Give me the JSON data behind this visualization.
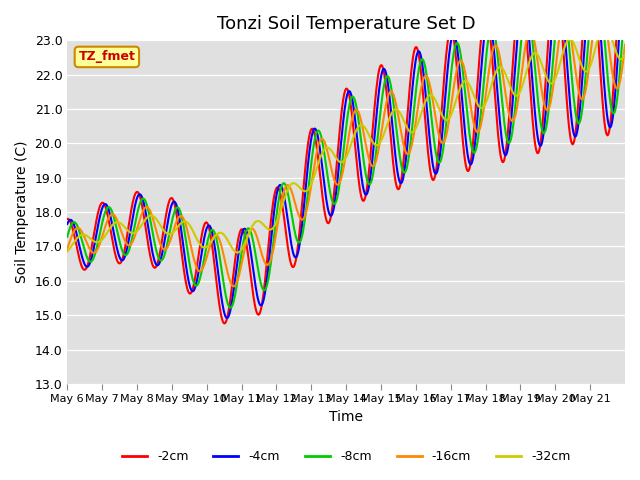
{
  "title": "Tonzi Soil Temperature Set D",
  "xlabel": "Time",
  "ylabel": "Soil Temperature (C)",
  "ylim": [
    13.0,
    23.0
  ],
  "yticks": [
    13.0,
    14.0,
    15.0,
    16.0,
    17.0,
    18.0,
    19.0,
    20.0,
    21.0,
    22.0,
    23.0
  ],
  "xtick_labels": [
    "May 6",
    "May 7",
    "May 8",
    "May 9",
    "May 10",
    "May 11",
    "May 12",
    "May 13",
    "May 14",
    "May 15",
    "May 16",
    "May 17",
    "May 18",
    "May 19",
    "May 20",
    "May 21"
  ],
  "xtick_positions": [
    0,
    1,
    2,
    3,
    4,
    5,
    6,
    7,
    8,
    9,
    10,
    11,
    12,
    13,
    14,
    15
  ],
  "legend_labels": [
    "-2cm",
    "-4cm",
    "-8cm",
    "-16cm",
    "-32cm"
  ],
  "legend_colors": [
    "#ff0000",
    "#0000ff",
    "#00cc00",
    "#ff8800",
    "#cccc00"
  ],
  "annotation_text": "TZ_fmet",
  "annotation_bg": "#ffff99",
  "annotation_border": "#cc8800",
  "background_color": "#e0e0e0",
  "line_width": 1.5,
  "n_days": 16,
  "n_per_day": 48
}
